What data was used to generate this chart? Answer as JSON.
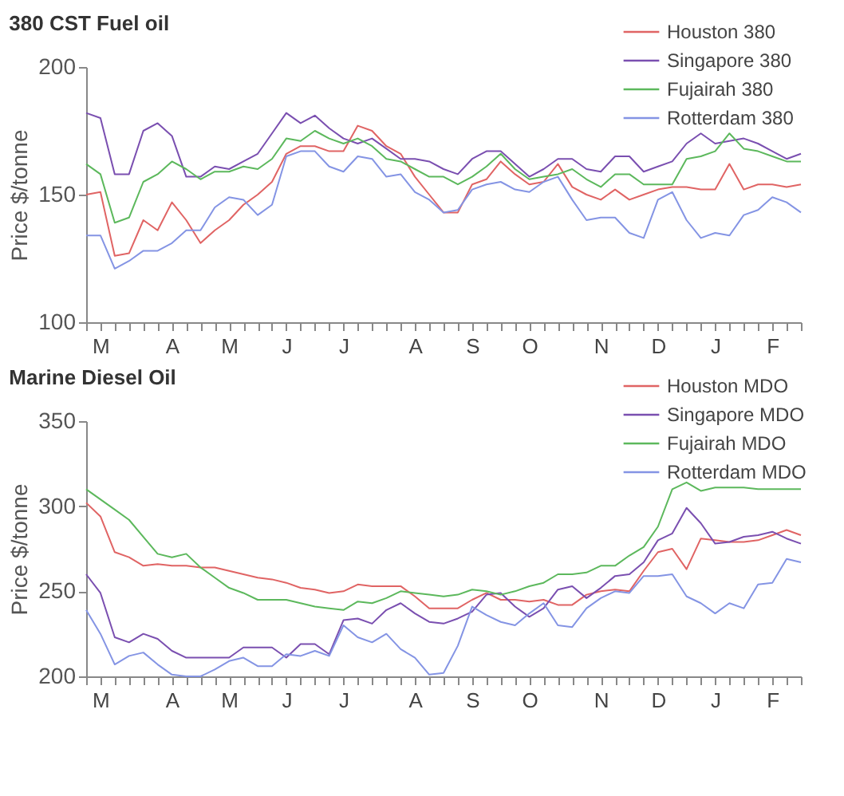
{
  "chart_data": [
    {
      "type": "line",
      "title": "380 CST Fuel oil",
      "ylabel": "Price $/tonne",
      "categories": [
        null,
        "M",
        null,
        null,
        null,
        null,
        "A",
        null,
        null,
        null,
        "M",
        null,
        null,
        null,
        "J",
        null,
        null,
        null,
        "J",
        null,
        null,
        null,
        null,
        "A",
        null,
        null,
        null,
        "S",
        null,
        null,
        null,
        "O",
        null,
        null,
        null,
        null,
        "N",
        null,
        null,
        null,
        "D",
        null,
        null,
        null,
        "J",
        null,
        null,
        null,
        "F",
        null,
        null
      ],
      "ylim": [
        100,
        200
      ],
      "yticks": [
        100,
        150,
        200
      ],
      "grid": false,
      "legend": "top right",
      "line_style": "solid",
      "series": [
        {
          "name": "Houston 380",
          "color": "#e06464",
          "values": [
            150,
            151,
            126,
            127,
            140,
            136,
            147,
            140,
            131,
            136,
            140,
            146,
            150,
            155,
            166,
            169,
            169,
            167,
            167,
            177,
            175,
            169,
            166,
            157,
            150,
            143,
            143,
            154,
            156,
            163,
            158,
            154,
            155,
            162,
            153,
            150,
            148,
            152,
            148,
            150,
            152,
            153,
            153,
            152,
            152,
            162,
            152,
            154,
            154,
            153,
            154
          ]
        },
        {
          "name": "Singapore 380",
          "color": "#7a4fb0",
          "values": [
            182,
            180,
            158,
            158,
            175,
            178,
            173,
            157,
            157,
            161,
            160,
            163,
            166,
            174,
            182,
            178,
            181,
            176,
            172,
            170,
            172,
            168,
            164,
            164,
            163,
            160,
            158,
            164,
            167,
            167,
            162,
            157,
            160,
            164,
            164,
            160,
            159,
            165,
            165,
            159,
            161,
            163,
            170,
            174,
            170,
            171,
            172,
            170,
            167,
            164,
            166
          ]
        },
        {
          "name": "Fujairah 380",
          "color": "#5cb85c",
          "values": [
            162,
            158,
            139,
            141,
            155,
            158,
            163,
            160,
            156,
            159,
            159,
            161,
            160,
            164,
            172,
            171,
            175,
            172,
            170,
            172,
            169,
            164,
            163,
            160,
            157,
            157,
            154,
            157,
            161,
            166,
            160,
            156,
            157,
            158,
            160,
            156,
            153,
            158,
            158,
            154,
            154,
            154,
            164,
            165,
            167,
            174,
            168,
            167,
            165,
            163,
            163
          ]
        },
        {
          "name": "Rotterdam 380",
          "color": "#8494e4",
          "values": [
            134,
            134,
            121,
            124,
            128,
            128,
            131,
            136,
            136,
            145,
            149,
            148,
            142,
            146,
            165,
            167,
            167,
            161,
            159,
            165,
            164,
            157,
            158,
            151,
            148,
            143,
            144,
            152,
            154,
            155,
            152,
            151,
            155,
            157,
            148,
            140,
            141,
            141,
            135,
            133,
            148,
            151,
            140,
            133,
            135,
            134,
            142,
            144,
            149,
            147,
            143
          ]
        }
      ]
    },
    {
      "type": "line",
      "title": "Marine Diesel Oil",
      "ylabel": "Price $/tonne",
      "categories": [
        null,
        "M",
        null,
        null,
        null,
        null,
        "A",
        null,
        null,
        null,
        "M",
        null,
        null,
        null,
        "J",
        null,
        null,
        null,
        "J",
        null,
        null,
        null,
        null,
        "A",
        null,
        null,
        null,
        "S",
        null,
        null,
        null,
        "O",
        null,
        null,
        null,
        null,
        "N",
        null,
        null,
        null,
        "D",
        null,
        null,
        null,
        "J",
        null,
        null,
        null,
        "F",
        null,
        null
      ],
      "ylim": [
        200,
        350
      ],
      "yticks": [
        200,
        250,
        300,
        350
      ],
      "grid": false,
      "legend": "top right",
      "line_style": "solid",
      "series": [
        {
          "name": "Houston MDO",
          "color": "#e06464",
          "values": [
            302,
            294,
            273,
            270,
            265,
            266,
            265,
            265,
            264,
            264,
            262,
            260,
            258,
            257,
            255,
            252,
            251,
            249,
            250,
            254,
            253,
            253,
            253,
            247,
            240,
            240,
            240,
            245,
            249,
            245,
            245,
            244,
            245,
            242,
            242,
            248,
            250,
            251,
            250,
            262,
            273,
            275,
            263,
            281,
            280,
            279,
            279,
            280,
            283,
            286,
            283
          ]
        },
        {
          "name": "Singapore MDO",
          "color": "#7a4fb0",
          "values": [
            260,
            249,
            223,
            220,
            225,
            222,
            215,
            211,
            211,
            211,
            211,
            217,
            217,
            217,
            211,
            219,
            219,
            213,
            233,
            234,
            231,
            239,
            243,
            237,
            232,
            231,
            234,
            238,
            248,
            249,
            241,
            235,
            240,
            251,
            253,
            246,
            252,
            259,
            260,
            267,
            280,
            284,
            299,
            290,
            278,
            279,
            282,
            283,
            285,
            281,
            278
          ]
        },
        {
          "name": "Fujairah MDO",
          "color": "#5cb85c",
          "values": [
            310,
            304,
            298,
            292,
            282,
            272,
            270,
            272,
            264,
            258,
            252,
            249,
            245,
            245,
            245,
            243,
            241,
            240,
            239,
            244,
            243,
            246,
            250,
            249,
            248,
            247,
            248,
            251,
            250,
            248,
            250,
            253,
            255,
            260,
            260,
            261,
            265,
            265,
            271,
            276,
            288,
            310,
            314,
            309,
            311,
            311,
            311,
            310,
            310,
            310,
            310
          ]
        },
        {
          "name": "Rotterdam MDO",
          "color": "#8494e4",
          "values": [
            239,
            225,
            207,
            212,
            214,
            207,
            201,
            200,
            200,
            204,
            209,
            211,
            206,
            206,
            213,
            212,
            215,
            212,
            230,
            223,
            220,
            225,
            216,
            211,
            201,
            202,
            218,
            241,
            236,
            232,
            230,
            237,
            243,
            230,
            229,
            240,
            246,
            250,
            249,
            259,
            259,
            260,
            247,
            243,
            237,
            243,
            240,
            254,
            255,
            269,
            267
          ]
        }
      ]
    }
  ]
}
